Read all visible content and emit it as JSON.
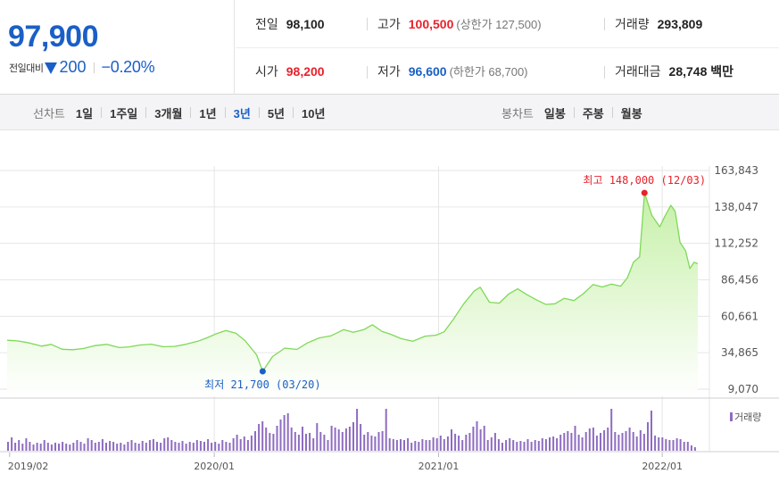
{
  "quote": {
    "price": "97,900",
    "change_label": "전일대비",
    "change_direction_icon": "down-triangle-icon",
    "change_amount": "200",
    "change_rate": "−0.20%",
    "prev_close_label": "전일",
    "prev_close": "98,100",
    "high_label": "고가",
    "high": "100,500",
    "upper_limit_note": "(상한가 127,500)",
    "volume_label": "거래량",
    "volume": "293,809",
    "open_label": "시가",
    "open": "98,200",
    "low_label": "저가",
    "low": "96,600",
    "lower_limit_note": "(하한가 68,700)",
    "amount_label": "거래대금",
    "amount": "28,748 백만"
  },
  "periods": {
    "line_label": "선차트",
    "line_items": [
      "1일",
      "1주일",
      "3개월",
      "1년",
      "3년",
      "5년",
      "10년"
    ],
    "line_active": "3년",
    "candle_label": "봉차트",
    "candle_items": [
      "일봉",
      "주봉",
      "월봉"
    ]
  },
  "colors": {
    "up": "#e8212b",
    "down": "#1a5fc7",
    "line": "#7ed957",
    "area_top": "#c6f0a8",
    "volume_bar": "#8e6cc0"
  },
  "chart_data": {
    "type": "area",
    "y_ticks": [
      "163,843",
      "138,047",
      "112,252",
      "86,456",
      "60,661",
      "34,865",
      "9,070"
    ],
    "ylim": [
      9070,
      163843
    ],
    "x_ticks": [
      {
        "label": "2019/02",
        "x": "2019-02-01"
      },
      {
        "label": "2020/01",
        "x": "2020-01-01"
      },
      {
        "label": "2021/01",
        "x": "2021-01-01"
      },
      {
        "label": "2022/01",
        "x": "2022-01-01"
      }
    ],
    "xlim": [
      "2019-01-28",
      "2022-02-28"
    ],
    "annotations": {
      "high": {
        "text": "최고 148,000 (12/03)",
        "x": "2021-12-03",
        "y": 148000
      },
      "low": {
        "text": "최저 21,700 (03/20)",
        "x": "2020-03-20",
        "y": 21700
      }
    },
    "series": [
      {
        "values": [
          [
            "2019-01-28",
            43700
          ],
          [
            "2019-02-15",
            43200
          ],
          [
            "2019-03-05",
            41800
          ],
          [
            "2019-03-25",
            39500
          ],
          [
            "2019-04-10",
            40800
          ],
          [
            "2019-04-28",
            37300
          ],
          [
            "2019-05-15",
            37000
          ],
          [
            "2019-06-01",
            37800
          ],
          [
            "2019-06-20",
            39900
          ],
          [
            "2019-07-10",
            40800
          ],
          [
            "2019-07-30",
            38500
          ],
          [
            "2019-08-15",
            39000
          ],
          [
            "2019-09-01",
            40300
          ],
          [
            "2019-09-20",
            40900
          ],
          [
            "2019-10-10",
            39100
          ],
          [
            "2019-10-28",
            39300
          ],
          [
            "2019-11-15",
            40800
          ],
          [
            "2019-12-05",
            43000
          ],
          [
            "2019-12-20",
            45400
          ],
          [
            "2020-01-05",
            48400
          ],
          [
            "2020-01-20",
            50600
          ],
          [
            "2020-02-05",
            48700
          ],
          [
            "2020-02-20",
            43500
          ],
          [
            "2020-03-10",
            33400
          ],
          [
            "2020-03-20",
            21700
          ],
          [
            "2020-04-05",
            32100
          ],
          [
            "2020-04-25",
            38100
          ],
          [
            "2020-05-15",
            37200
          ],
          [
            "2020-06-01",
            41800
          ],
          [
            "2020-06-20",
            45300
          ],
          [
            "2020-07-10",
            46900
          ],
          [
            "2020-07-30",
            51200
          ],
          [
            "2020-08-15",
            49400
          ],
          [
            "2020-09-01",
            51200
          ],
          [
            "2020-09-15",
            54700
          ],
          [
            "2020-10-01",
            49900
          ],
          [
            "2020-10-15",
            47900
          ],
          [
            "2020-11-01",
            44800
          ],
          [
            "2020-11-20",
            43000
          ],
          [
            "2020-12-10",
            46600
          ],
          [
            "2020-12-28",
            47300
          ],
          [
            "2021-01-10",
            49600
          ],
          [
            "2021-01-25",
            58400
          ],
          [
            "2021-02-10",
            68900
          ],
          [
            "2021-02-28",
            78500
          ],
          [
            "2021-03-10",
            81200
          ],
          [
            "2021-03-25",
            70600
          ],
          [
            "2021-04-10",
            70000
          ],
          [
            "2021-04-25",
            76300
          ],
          [
            "2021-05-10",
            80100
          ],
          [
            "2021-05-25",
            76000
          ],
          [
            "2021-06-10",
            72200
          ],
          [
            "2021-06-25",
            69000
          ],
          [
            "2021-07-10",
            69500
          ],
          [
            "2021-07-25",
            73400
          ],
          [
            "2021-08-10",
            71800
          ],
          [
            "2021-08-25",
            76600
          ],
          [
            "2021-09-10",
            83100
          ],
          [
            "2021-09-25",
            81400
          ],
          [
            "2021-10-10",
            83500
          ],
          [
            "2021-10-25",
            82000
          ],
          [
            "2021-11-05",
            87800
          ],
          [
            "2021-11-15",
            98900
          ],
          [
            "2021-11-25",
            102700
          ],
          [
            "2021-12-03",
            148000
          ],
          [
            "2021-12-15",
            132100
          ],
          [
            "2021-12-28",
            124000
          ],
          [
            "2022-01-05",
            131200
          ],
          [
            "2022-01-15",
            139200
          ],
          [
            "2022-01-22",
            135000
          ],
          [
            "2022-01-30",
            113000
          ],
          [
            "2022-02-08",
            107000
          ],
          [
            "2022-02-15",
            94400
          ],
          [
            "2022-02-22",
            98900
          ],
          [
            "2022-02-28",
            97900
          ]
        ]
      }
    ],
    "volume": {
      "legend": "거래량",
      "values": [
        10,
        15,
        9,
        12,
        8,
        14,
        10,
        7,
        9,
        8,
        12,
        9,
        7,
        9,
        8,
        10,
        8,
        7,
        9,
        12,
        10,
        8,
        14,
        12,
        9,
        10,
        13,
        9,
        11,
        10,
        8,
        9,
        7,
        10,
        12,
        9,
        8,
        11,
        9,
        12,
        13,
        10,
        9,
        14,
        15,
        12,
        10,
        9,
        11,
        8,
        10,
        9,
        12,
        11,
        10,
        13,
        9,
        10,
        8,
        12,
        10,
        9,
        14,
        18,
        13,
        16,
        12,
        17,
        22,
        30,
        33,
        26,
        20,
        19,
        28,
        35,
        40,
        42,
        26,
        21,
        18,
        27,
        19,
        20,
        14,
        31,
        21,
        18,
        12,
        28,
        26,
        24,
        21,
        25,
        27,
        32,
        47,
        30,
        18,
        21,
        17,
        16,
        21,
        22,
        47,
        14,
        13,
        12,
        13,
        12,
        14,
        9,
        11,
        10,
        13,
        12,
        12,
        15,
        14,
        17,
        13,
        16,
        24,
        19,
        17,
        12,
        18,
        20,
        27,
        33,
        24,
        28,
        12,
        15,
        20,
        13,
        9,
        12,
        14,
        12,
        10,
        11,
        10,
        13,
        10,
        12,
        11,
        14,
        13,
        15,
        16,
        14,
        18,
        20,
        22,
        20,
        28,
        18,
        15,
        21,
        25,
        26,
        17,
        20,
        23,
        26,
        47,
        21,
        18,
        20,
        22,
        26,
        21,
        16,
        23,
        19,
        32,
        45,
        17,
        15,
        15,
        13,
        12,
        12,
        14,
        13,
        10,
        10,
        6,
        4
      ]
    }
  }
}
